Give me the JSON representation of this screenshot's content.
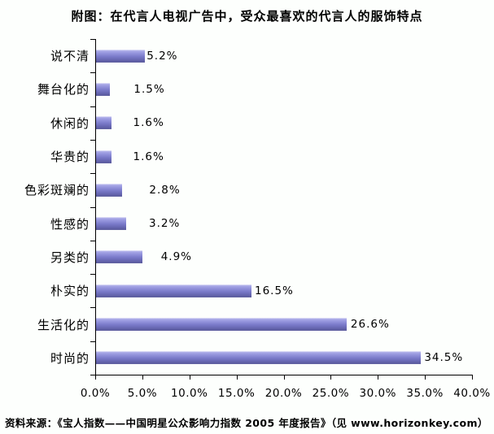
{
  "title": "附图：在代言人电视广告中，受众最喜欢的代言人的服饰特点",
  "source": "资料来源：《宝人指数——中国明星公众影响力指数 2005 年度报告》（见 www.horizonkey.com）",
  "chart_data": {
    "type": "bar",
    "orientation": "horizontal",
    "title": "附图：在代言人电视广告中，受众最喜欢的代言人的服饰特点",
    "categories": [
      "说不清",
      "舞台化的",
      "休闲的",
      "华贵的",
      "色彩斑斓的",
      "性感的",
      "另类的",
      "朴实的",
      "生活化的",
      "时尚的"
    ],
    "values": [
      5.2,
      1.5,
      1.6,
      1.6,
      2.8,
      3.2,
      4.9,
      16.5,
      26.6,
      34.5
    ],
    "data_labels": [
      "5.2%",
      "1.5%",
      "1.6%",
      "1.6%",
      "2.8%",
      "3.2%",
      "4.9%",
      "16.5%",
      "26.6%",
      "34.5%"
    ],
    "x_ticks": [
      "0.0%",
      "5.0%",
      "10.0%",
      "15.0%",
      "20.0%",
      "25.0%",
      "30.0%",
      "35.0%",
      "40.0%"
    ],
    "x_tick_values": [
      0,
      5,
      10,
      15,
      20,
      25,
      30,
      35,
      40
    ],
    "xlim": [
      0,
      40
    ],
    "xlabel": "",
    "ylabel": "",
    "grid": false,
    "legend": "none",
    "bar_color_top": "#a9a9e7",
    "bar_color_bottom": "#5c5ca0",
    "axis_color": "#000000",
    "background_color": "#fdfffd"
  }
}
